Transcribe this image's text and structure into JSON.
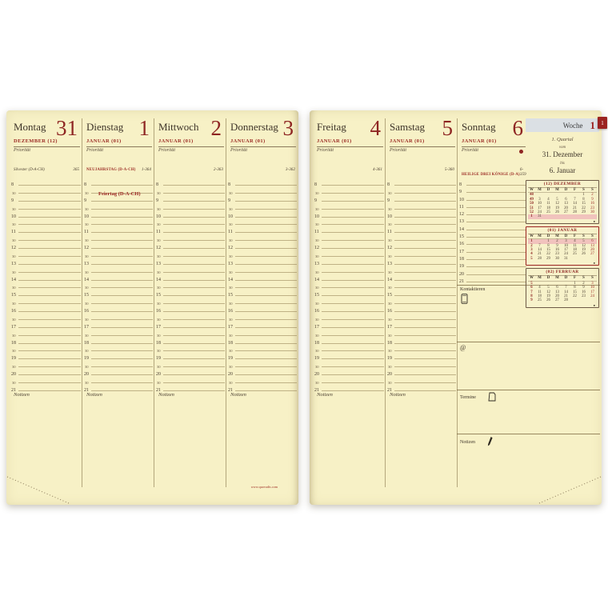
{
  "labels": {
    "priority": "Priorität",
    "notes": "Notizen",
    "half_hour": "30",
    "url": "www.quovadis.com"
  },
  "week": {
    "label": "Woche",
    "number": "1",
    "tab": "1",
    "quarter": "1. Quartal",
    "from_label": "vom",
    "from_date": "31. Dezember",
    "to_label": "bis",
    "to_date": "6. Januar"
  },
  "days": [
    {
      "name": "Montag",
      "number": "31",
      "month": "DEZEMBER (12)",
      "holiday": "Silvester (D-A-CH)",
      "holiday_red": false,
      "day_count": "365"
    },
    {
      "name": "Dienstag",
      "number": "1",
      "month": "JANUAR (01)",
      "holiday": "NEUJAHRSTAG (D-A-CH)",
      "holiday_red": true,
      "day_count": "1-364",
      "note": "Feiertag (D-A-CH)"
    },
    {
      "name": "Mittwoch",
      "number": "2",
      "month": "JANUAR (01)",
      "holiday": "",
      "day_count": "2-363"
    },
    {
      "name": "Donnerstag",
      "number": "3",
      "month": "JANUAR (01)",
      "holiday": "",
      "day_count": "3-362"
    },
    {
      "name": "Freitag",
      "number": "4",
      "month": "JANUAR (01)",
      "holiday": "",
      "day_count": "4-361"
    },
    {
      "name": "Samstag",
      "number": "5",
      "month": "JANUAR (01)",
      "holiday": "",
      "day_count": "5-360"
    },
    {
      "name": "Sonntag",
      "number": "6",
      "month": "JANUAR (01)",
      "holiday": "HEILIGE DREI KÖNIGE (D-A)",
      "holiday_red": true,
      "day_count": "6-359",
      "red_dot": true
    }
  ],
  "hours": [
    "8",
    "9",
    "10",
    "11",
    "12",
    "13",
    "14",
    "15",
    "16",
    "17",
    "18",
    "19",
    "20",
    "21"
  ],
  "sections": [
    {
      "label": "Kontaktieren",
      "icon": "phone-icon"
    },
    {
      "label": "@",
      "icon": ""
    },
    {
      "label": "Termine",
      "icon": "calendar-sheet-icon"
    },
    {
      "label": "Notizen",
      "icon": "pen-icon"
    }
  ],
  "mini_calendars": [
    {
      "title": "(12) DEZEMBER",
      "day_letters": [
        "W",
        "M",
        "D",
        "M",
        "D",
        "F",
        "S",
        "S"
      ],
      "rows": [
        [
          "48",
          "",
          "",
          "",
          "",
          "",
          "1",
          "2"
        ],
        [
          "49",
          "3",
          "4",
          "5",
          "6",
          "7",
          "8",
          "9"
        ],
        [
          "50",
          "10",
          "11",
          "12",
          "13",
          "14",
          "15",
          "16"
        ],
        [
          "51",
          "17",
          "18",
          "19",
          "20",
          "21",
          "22",
          "23"
        ],
        [
          "52",
          "24",
          "25",
          "26",
          "27",
          "28",
          "29",
          "30"
        ],
        [
          "1",
          "31",
          "",
          "",
          "",
          "",
          "",
          ""
        ]
      ],
      "highlight_row": 5,
      "current": false,
      "moon": "●"
    },
    {
      "title": "(01) JANUAR",
      "day_letters": [
        "W",
        "M",
        "D",
        "M",
        "D",
        "F",
        "S",
        "S"
      ],
      "rows": [
        [
          "1",
          "",
          "1",
          "2",
          "3",
          "4",
          "5",
          "6"
        ],
        [
          "2",
          "7",
          "8",
          "9",
          "10",
          "11",
          "12",
          "13"
        ],
        [
          "3",
          "14",
          "15",
          "16",
          "17",
          "18",
          "19",
          "20"
        ],
        [
          "4",
          "21",
          "22",
          "23",
          "24",
          "25",
          "26",
          "27"
        ],
        [
          "5",
          "28",
          "29",
          "30",
          "31",
          "",
          "",
          ""
        ]
      ],
      "highlight_row": 0,
      "current": true,
      "moon": "●"
    },
    {
      "title": "(02) FEBRUAR",
      "day_letters": [
        "W",
        "M",
        "D",
        "M",
        "D",
        "F",
        "S",
        "S"
      ],
      "rows": [
        [
          "5",
          "",
          "",
          "",
          "",
          "1",
          "2",
          "3"
        ],
        [
          "6",
          "4",
          "5",
          "6",
          "7",
          "8",
          "9",
          "10"
        ],
        [
          "7",
          "11",
          "12",
          "13",
          "14",
          "15",
          "16",
          "17"
        ],
        [
          "8",
          "18",
          "19",
          "20",
          "21",
          "22",
          "23",
          "24"
        ],
        [
          "9",
          "25",
          "26",
          "27",
          "28",
          "",
          "",
          ""
        ]
      ],
      "highlight_row": -1,
      "current": false,
      "moon": "●"
    }
  ]
}
